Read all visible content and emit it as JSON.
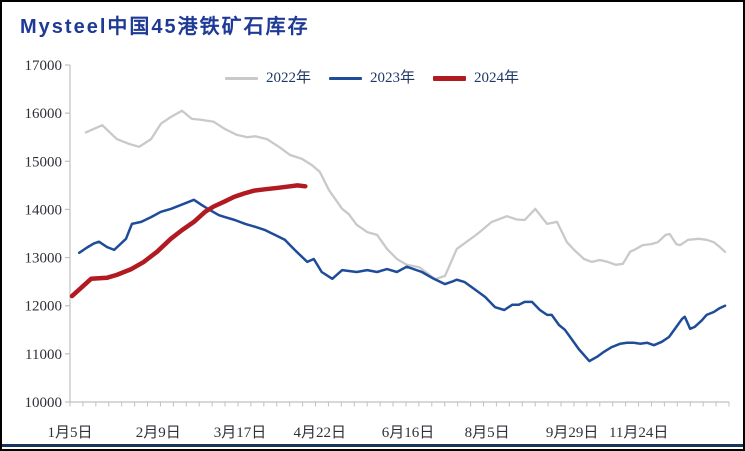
{
  "page": {
    "title": "Mysteel中国45港铁矿石库存"
  },
  "colors": {
    "title_text": "#1E3A96",
    "legend_text": "#1F3864",
    "axis_text": "#303038",
    "axis_line": "#C0C0C0",
    "bottom_bar": "#16365C",
    "frame_border": "#000000",
    "background": "#FFFFFF"
  },
  "chart_data": {
    "type": "line",
    "title": "Mysteel中国45港铁矿石库存",
    "xlabel": "",
    "ylabel": "",
    "ylim": [
      10000,
      17000
    ],
    "yticks": [
      17000,
      16000,
      15000,
      14000,
      13000,
      12000,
      11000,
      10000
    ],
    "grid": false,
    "legend_position": "top-center",
    "x_axis": {
      "minor_tick_count": 52,
      "labels": [
        {
          "label": "1月5日",
          "pos": 0.0
        },
        {
          "label": "2月9日",
          "pos": 0.134
        },
        {
          "label": "3月17日",
          "pos": 0.258
        },
        {
          "label": "4月22日",
          "pos": 0.379
        },
        {
          "label": "6月16日",
          "pos": 0.513
        },
        {
          "label": "8月5日",
          "pos": 0.633
        },
        {
          "label": "9月29日",
          "pos": 0.762
        },
        {
          "label": "11月24日",
          "pos": 0.863
        }
      ]
    },
    "series": [
      {
        "name": "2022年",
        "color": "#C9C9C9",
        "width": 2.3,
        "points": [
          [
            0.024,
            15600
          ],
          [
            0.049,
            15750
          ],
          [
            0.071,
            15460
          ],
          [
            0.09,
            15360
          ],
          [
            0.105,
            15300
          ],
          [
            0.123,
            15460
          ],
          [
            0.138,
            15780
          ],
          [
            0.153,
            15920
          ],
          [
            0.17,
            16050
          ],
          [
            0.185,
            15880
          ],
          [
            0.2,
            15860
          ],
          [
            0.218,
            15820
          ],
          [
            0.235,
            15670
          ],
          [
            0.253,
            15550
          ],
          [
            0.269,
            15500
          ],
          [
            0.281,
            15520
          ],
          [
            0.299,
            15460
          ],
          [
            0.317,
            15300
          ],
          [
            0.334,
            15130
          ],
          [
            0.352,
            15050
          ],
          [
            0.367,
            14920
          ],
          [
            0.379,
            14780
          ],
          [
            0.393,
            14400
          ],
          [
            0.413,
            14010
          ],
          [
            0.423,
            13900
          ],
          [
            0.435,
            13680
          ],
          [
            0.451,
            13530
          ],
          [
            0.466,
            13470
          ],
          [
            0.481,
            13180
          ],
          [
            0.496,
            12970
          ],
          [
            0.511,
            12850
          ],
          [
            0.53,
            12800
          ],
          [
            0.554,
            12550
          ],
          [
            0.569,
            12620
          ],
          [
            0.587,
            13180
          ],
          [
            0.595,
            13260
          ],
          [
            0.618,
            13490
          ],
          [
            0.64,
            13740
          ],
          [
            0.663,
            13860
          ],
          [
            0.678,
            13790
          ],
          [
            0.69,
            13780
          ],
          [
            0.706,
            14010
          ],
          [
            0.724,
            13700
          ],
          [
            0.739,
            13740
          ],
          [
            0.754,
            13320
          ],
          [
            0.765,
            13160
          ],
          [
            0.78,
            12970
          ],
          [
            0.792,
            12910
          ],
          [
            0.804,
            12950
          ],
          [
            0.816,
            12910
          ],
          [
            0.828,
            12850
          ],
          [
            0.839,
            12870
          ],
          [
            0.85,
            13120
          ],
          [
            0.859,
            13180
          ],
          [
            0.869,
            13260
          ],
          [
            0.882,
            13280
          ],
          [
            0.892,
            13320
          ],
          [
            0.904,
            13470
          ],
          [
            0.91,
            13490
          ],
          [
            0.92,
            13280
          ],
          [
            0.926,
            13260
          ],
          [
            0.938,
            13370
          ],
          [
            0.954,
            13390
          ],
          [
            0.966,
            13370
          ],
          [
            0.977,
            13320
          ],
          [
            0.986,
            13220
          ],
          [
            0.994,
            13120
          ]
        ]
      },
      {
        "name": "2023年",
        "color": "#1E4C99",
        "width": 2.5,
        "points": [
          [
            0.014,
            13100
          ],
          [
            0.026,
            13210
          ],
          [
            0.036,
            13290
          ],
          [
            0.044,
            13330
          ],
          [
            0.056,
            13220
          ],
          [
            0.067,
            13160
          ],
          [
            0.085,
            13390
          ],
          [
            0.094,
            13700
          ],
          [
            0.108,
            13740
          ],
          [
            0.123,
            13840
          ],
          [
            0.138,
            13950
          ],
          [
            0.153,
            14010
          ],
          [
            0.168,
            14090
          ],
          [
            0.188,
            14200
          ],
          [
            0.2,
            14090
          ],
          [
            0.212,
            13990
          ],
          [
            0.226,
            13880
          ],
          [
            0.235,
            13840
          ],
          [
            0.25,
            13780
          ],
          [
            0.266,
            13700
          ],
          [
            0.281,
            13640
          ],
          [
            0.296,
            13570
          ],
          [
            0.311,
            13470
          ],
          [
            0.326,
            13370
          ],
          [
            0.341,
            13160
          ],
          [
            0.36,
            12910
          ],
          [
            0.37,
            12970
          ],
          [
            0.382,
            12700
          ],
          [
            0.398,
            12560
          ],
          [
            0.413,
            12740
          ],
          [
            0.435,
            12700
          ],
          [
            0.451,
            12740
          ],
          [
            0.466,
            12700
          ],
          [
            0.481,
            12760
          ],
          [
            0.496,
            12700
          ],
          [
            0.511,
            12810
          ],
          [
            0.534,
            12700
          ],
          [
            0.552,
            12560
          ],
          [
            0.569,
            12450
          ],
          [
            0.58,
            12500
          ],
          [
            0.587,
            12540
          ],
          [
            0.599,
            12490
          ],
          [
            0.615,
            12330
          ],
          [
            0.63,
            12180
          ],
          [
            0.645,
            11970
          ],
          [
            0.659,
            11910
          ],
          [
            0.671,
            12020
          ],
          [
            0.681,
            12020
          ],
          [
            0.69,
            12080
          ],
          [
            0.701,
            12080
          ],
          [
            0.713,
            11910
          ],
          [
            0.724,
            11810
          ],
          [
            0.731,
            11810
          ],
          [
            0.742,
            11600
          ],
          [
            0.751,
            11500
          ],
          [
            0.762,
            11290
          ],
          [
            0.772,
            11100
          ],
          [
            0.788,
            10850
          ],
          [
            0.8,
            10940
          ],
          [
            0.81,
            11040
          ],
          [
            0.822,
            11140
          ],
          [
            0.835,
            11210
          ],
          [
            0.845,
            11230
          ],
          [
            0.856,
            11230
          ],
          [
            0.865,
            11210
          ],
          [
            0.876,
            11230
          ],
          [
            0.886,
            11180
          ],
          [
            0.898,
            11250
          ],
          [
            0.909,
            11350
          ],
          [
            0.918,
            11520
          ],
          [
            0.929,
            11730
          ],
          [
            0.933,
            11770
          ],
          [
            0.941,
            11520
          ],
          [
            0.948,
            11560
          ],
          [
            0.959,
            11700
          ],
          [
            0.966,
            11810
          ],
          [
            0.977,
            11870
          ],
          [
            0.986,
            11950
          ],
          [
            0.994,
            12000
          ]
        ]
      },
      {
        "name": "2024年",
        "color": "#B11A21",
        "width": 4.5,
        "points": [
          [
            0.003,
            12200
          ],
          [
            0.032,
            12560
          ],
          [
            0.056,
            12580
          ],
          [
            0.071,
            12640
          ],
          [
            0.093,
            12760
          ],
          [
            0.112,
            12910
          ],
          [
            0.132,
            13120
          ],
          [
            0.153,
            13390
          ],
          [
            0.17,
            13570
          ],
          [
            0.188,
            13740
          ],
          [
            0.205,
            13950
          ],
          [
            0.218,
            14060
          ],
          [
            0.234,
            14160
          ],
          [
            0.249,
            14260
          ],
          [
            0.264,
            14330
          ],
          [
            0.279,
            14390
          ],
          [
            0.297,
            14420
          ],
          [
            0.316,
            14450
          ],
          [
            0.334,
            14480
          ],
          [
            0.345,
            14500
          ],
          [
            0.357,
            14480
          ]
        ]
      }
    ]
  }
}
